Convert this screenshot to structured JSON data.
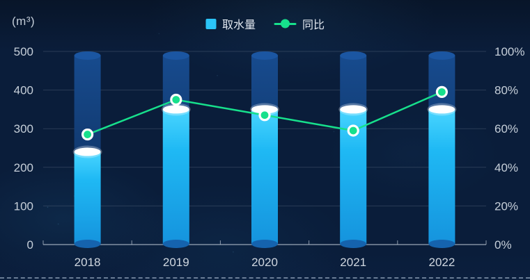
{
  "unit_label": "(m³)",
  "legend": {
    "items": [
      {
        "label": "取水量",
        "marker": "square",
        "color": "#2bc4f7"
      },
      {
        "label": "同比",
        "marker": "line-dot",
        "color": "#17e08c"
      }
    ]
  },
  "chart_data": {
    "type": "bar+line",
    "title": "",
    "categories": [
      "2018",
      "2019",
      "2020",
      "2021",
      "2022"
    ],
    "series": [
      {
        "name": "取水量",
        "type": "bar",
        "yaxis": "left",
        "unit": "m³",
        "color": "#1db8f3",
        "values": [
          240,
          350,
          350,
          350,
          350
        ]
      },
      {
        "name": "同比",
        "type": "line",
        "yaxis": "right",
        "unit": "%",
        "color": "#17e08c",
        "values": [
          57,
          75,
          67,
          59,
          79
        ]
      }
    ],
    "left_axis": {
      "label": "(m³)",
      "min": 0,
      "max": 500,
      "ticks": [
        "500",
        "400",
        "300",
        "200",
        "100",
        "0"
      ]
    },
    "right_axis": {
      "min": 0,
      "max": 100,
      "ticks": [
        "100%",
        "80%",
        "60%",
        "40%",
        "20%",
        "0%"
      ]
    },
    "grid": true,
    "legend_position": "top-center"
  },
  "colors": {
    "background": "#0a1d3a",
    "bar_gradient_top": "#49d5ff",
    "bar_gradient_mid": "#1fb9f4",
    "bar_gradient_bottom": "#1593dd",
    "bar_cap": "#ffffff",
    "bar_bottom_ellipse": "#1563ae",
    "track_body_top": "#174b8e",
    "track_body_bottom": "#0c2a55",
    "track_top_ellipse": "#1b56a2",
    "line": "#17e08c",
    "grid_line": "#46566e",
    "axis_line": "#aab5c4",
    "tick_text": "#c6cfd9",
    "category_text": "#d0d7e0"
  }
}
